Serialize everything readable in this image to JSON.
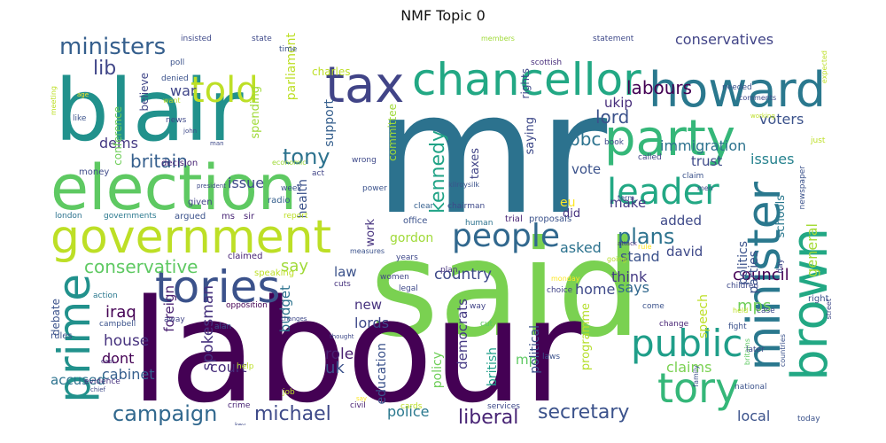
{
  "title": "NMF Topic 0",
  "words": [
    {
      "text": "mr",
      "size": 190,
      "color": "#2c728e"
    },
    {
      "text": "said",
      "size": 150,
      "color": "#7ad151"
    },
    {
      "text": "labour",
      "size": 160,
      "color": "#440154"
    },
    {
      "text": "blair",
      "size": 96,
      "color": "#21918c"
    },
    {
      "text": "election",
      "size": 70,
      "color": "#5ec962"
    },
    {
      "text": "government",
      "size": 52,
      "color": "#bddf26"
    },
    {
      "text": "tax",
      "size": 56,
      "color": "#414487"
    },
    {
      "text": "chancellor",
      "size": 50,
      "color": "#22a884"
    },
    {
      "text": "howard",
      "size": 54,
      "color": "#2a788e"
    },
    {
      "text": "party",
      "size": 56,
      "color": "#35b779"
    },
    {
      "text": "told",
      "size": 40,
      "color": "#bddf26"
    },
    {
      "text": "minister",
      "size": 52,
      "color": "#2a788e",
      "r": 90
    },
    {
      "text": "brown",
      "size": 56,
      "color": "#22a884",
      "r": 90
    },
    {
      "text": "prime",
      "size": 50,
      "color": "#21918c",
      "r": 90
    },
    {
      "text": "tories",
      "size": 50,
      "color": "#3b528b"
    },
    {
      "text": "tory",
      "size": 46,
      "color": "#35b779"
    },
    {
      "text": "public",
      "size": 42,
      "color": "#1f9e89"
    },
    {
      "text": "leader",
      "size": 40,
      "color": "#22a884"
    },
    {
      "text": "people",
      "size": 36,
      "color": "#31688e"
    },
    {
      "text": "ministers",
      "size": 26,
      "color": "#355f8d"
    },
    {
      "text": "lib",
      "size": 22,
      "color": "#404688"
    },
    {
      "text": "campaign",
      "size": 24,
      "color": "#31688e"
    },
    {
      "text": "michael",
      "size": 22,
      "color": "#3e4a89"
    },
    {
      "text": "secretary",
      "size": 22,
      "color": "#3b528b"
    },
    {
      "text": "liberal",
      "size": 22,
      "color": "#482475"
    },
    {
      "text": "conservative",
      "size": 20,
      "color": "#5ec962"
    },
    {
      "text": "britain",
      "size": 20,
      "color": "#355f8d"
    },
    {
      "text": "tony",
      "size": 24,
      "color": "#2c728e"
    },
    {
      "text": "kennedy",
      "size": 22,
      "color": "#20a386",
      "r": 90
    },
    {
      "text": "plans",
      "size": 24,
      "color": "#2c728e"
    },
    {
      "text": "labours",
      "size": 20,
      "color": "#440154"
    },
    {
      "text": "lord",
      "size": 20,
      "color": "#3b528b"
    },
    {
      "text": "bbc",
      "size": 20,
      "color": "#2c728e"
    },
    {
      "text": "immigration",
      "size": 16,
      "color": "#2c728e"
    },
    {
      "text": "conservatives",
      "size": 16,
      "color": "#414487"
    },
    {
      "text": "voters",
      "size": 16,
      "color": "#3b528b"
    },
    {
      "text": "ukip",
      "size": 15,
      "color": "#472d7b"
    },
    {
      "text": "trust",
      "size": 15,
      "color": "#3e4989"
    },
    {
      "text": "issues",
      "size": 16,
      "color": "#26828e"
    },
    {
      "text": "general",
      "size": 16,
      "color": "#a5db36",
      "r": 90
    },
    {
      "text": "council",
      "size": 18,
      "color": "#440154"
    },
    {
      "text": "iraq",
      "size": 18,
      "color": "#440154"
    },
    {
      "text": "war",
      "size": 16,
      "color": "#404688"
    },
    {
      "text": "dems",
      "size": 16,
      "color": "#443983"
    },
    {
      "text": "issue",
      "size": 16,
      "color": "#3e4a89"
    },
    {
      "text": "say",
      "size": 18,
      "color": "#a0da39"
    },
    {
      "text": "country",
      "size": 17,
      "color": "#3e4989"
    },
    {
      "text": "asked",
      "size": 16,
      "color": "#2c728e"
    },
    {
      "text": "home",
      "size": 16,
      "color": "#3e4989"
    },
    {
      "text": "think",
      "size": 16,
      "color": "#443983"
    },
    {
      "text": "says",
      "size": 16,
      "color": "#31688e"
    },
    {
      "text": "stand",
      "size": 16,
      "color": "#3b528b"
    },
    {
      "text": "david",
      "size": 15,
      "color": "#3e4989"
    },
    {
      "text": "make",
      "size": 15,
      "color": "#443983"
    },
    {
      "text": "vote",
      "size": 15,
      "color": "#3b528b"
    },
    {
      "text": "added",
      "size": 15,
      "color": "#3e4989"
    },
    {
      "text": "house",
      "size": 17,
      "color": "#46327e"
    },
    {
      "text": "dont",
      "size": 16,
      "color": "#440154"
    },
    {
      "text": "cabinet",
      "size": 16,
      "color": "#355f8d"
    },
    {
      "text": "accused",
      "size": 15,
      "color": "#2c728e"
    },
    {
      "text": "court",
      "size": 16,
      "color": "#472d7b"
    },
    {
      "text": "uk",
      "size": 18,
      "color": "#3b528b"
    },
    {
      "text": "role",
      "size": 17,
      "color": "#481f70"
    },
    {
      "text": "police",
      "size": 16,
      "color": "#2a788e"
    },
    {
      "text": "new",
      "size": 15,
      "color": "#46327e"
    },
    {
      "text": "lords",
      "size": 16,
      "color": "#3e4989"
    },
    {
      "text": "law",
      "size": 15,
      "color": "#3b528b"
    },
    {
      "text": "mps",
      "size": 18,
      "color": "#6ece58"
    },
    {
      "text": "local",
      "size": 16,
      "color": "#3b528b"
    },
    {
      "text": "claims",
      "size": 16,
      "color": "#7ad151"
    },
    {
      "text": "mp",
      "size": 15,
      "color": "#5ec962"
    },
    {
      "text": "eu",
      "size": 14,
      "color": "#fde725"
    },
    {
      "text": "spokesman",
      "size": 17,
      "color": "#46327e",
      "r": 90
    },
    {
      "text": "foreign",
      "size": 15,
      "color": "#481f70",
      "r": 90
    },
    {
      "text": "budget",
      "size": 15,
      "color": "#2c728e",
      "r": 90
    },
    {
      "text": "education",
      "size": 14,
      "color": "#3b528b",
      "r": 90
    },
    {
      "text": "democrats",
      "size": 15,
      "color": "#443983",
      "r": 90
    },
    {
      "text": "british",
      "size": 14,
      "color": "#1f9e89",
      "r": 90
    },
    {
      "text": "policy",
      "size": 14,
      "color": "#6ece58",
      "r": 90
    },
    {
      "text": "political",
      "size": 14,
      "color": "#3b528b",
      "r": 90
    },
    {
      "text": "programme",
      "size": 13,
      "color": "#b5de2b",
      "r": 90
    },
    {
      "text": "politics",
      "size": 14,
      "color": "#3b528b",
      "r": 90
    },
    {
      "text": "parties",
      "size": 14,
      "color": "#3b528b",
      "r": 90
    },
    {
      "text": "schools",
      "size": 13,
      "color": "#2a788e",
      "r": 90
    },
    {
      "text": "speech",
      "size": 14,
      "color": "#bddf26",
      "r": 90
    },
    {
      "text": "parliament",
      "size": 14,
      "color": "#bddf26",
      "r": 90
    },
    {
      "text": "spending",
      "size": 13,
      "color": "#a0da39",
      "r": 90
    },
    {
      "text": "support",
      "size": 14,
      "color": "#355f8d",
      "r": 90
    },
    {
      "text": "health",
      "size": 14,
      "color": "#3b528b",
      "r": 90
    },
    {
      "text": "committee",
      "size": 12,
      "color": "#a0da39",
      "r": 90
    },
    {
      "text": "taxes",
      "size": 13,
      "color": "#414487",
      "r": 90
    },
    {
      "text": "saying",
      "size": 13,
      "color": "#3e4989",
      "r": 90
    },
    {
      "text": "rights",
      "size": 12,
      "color": "#3e4989",
      "r": 90
    },
    {
      "text": "commons",
      "size": 13,
      "color": "#2c728e",
      "r": 90
    },
    {
      "text": "gordon",
      "size": 14,
      "color": "#a0da39"
    },
    {
      "text": "work",
      "size": 13,
      "color": "#46327e",
      "r": 90
    },
    {
      "text": "did",
      "size": 13,
      "color": "#46327e"
    },
    {
      "text": "conference",
      "size": 12,
      "color": "#6ece58",
      "r": 90
    },
    {
      "text": "believe",
      "size": 12,
      "color": "#404688",
      "r": 90
    },
    {
      "text": "charles",
      "size": 12,
      "color": "#bddf26"
    },
    {
      "text": "debate",
      "size": 12,
      "color": "#3b528b",
      "r": 90
    },
    {
      "text": "economic",
      "size": 8,
      "color": "#a0da39"
    },
    {
      "text": "decision",
      "size": 10,
      "color": "#482475"
    },
    {
      "text": "money",
      "size": 10,
      "color": "#3e4989"
    },
    {
      "text": "london",
      "size": 9,
      "color": "#2c728e"
    },
    {
      "text": "governments",
      "size": 9,
      "color": "#2a788e"
    },
    {
      "text": "argued",
      "size": 10,
      "color": "#3b528b"
    },
    {
      "text": "ms",
      "size": 10,
      "color": "#482475"
    },
    {
      "text": "sir",
      "size": 10,
      "color": "#482475"
    },
    {
      "text": "report",
      "size": 9,
      "color": "#bddf26"
    },
    {
      "text": "office",
      "size": 10,
      "color": "#3b528b"
    },
    {
      "text": "human",
      "size": 9,
      "color": "#2c728e"
    },
    {
      "text": "trial",
      "size": 10,
      "color": "#482475"
    },
    {
      "text": "proposals",
      "size": 10,
      "color": "#3b528b"
    },
    {
      "text": "given",
      "size": 10,
      "color": "#414487"
    },
    {
      "text": "radio",
      "size": 10,
      "color": "#355f8d"
    },
    {
      "text": "claimed",
      "size": 10,
      "color": "#482475"
    },
    {
      "text": "speaking",
      "size": 10,
      "color": "#bddf26"
    },
    {
      "text": "opposition",
      "size": 9,
      "color": "#440154"
    },
    {
      "text": "alan",
      "size": 9,
      "color": "#3b528b"
    },
    {
      "text": "away",
      "size": 9,
      "color": "#414487"
    },
    {
      "text": "action",
      "size": 9,
      "color": "#2a788e"
    },
    {
      "text": "campbell",
      "size": 9,
      "color": "#3b528b"
    },
    {
      "text": "rules",
      "size": 10,
      "color": "#3b528b"
    },
    {
      "text": "evidence",
      "size": 9,
      "color": "#46327e"
    },
    {
      "text": "chief",
      "size": 7,
      "color": "#3e4989"
    },
    {
      "text": "east",
      "size": 7,
      "color": "#472d7b"
    },
    {
      "text": "crime",
      "size": 9,
      "color": "#482475"
    },
    {
      "text": "help",
      "size": 9,
      "color": "#bddf26"
    },
    {
      "text": "job",
      "size": 9,
      "color": "#bddf26"
    },
    {
      "text": "civil",
      "size": 9,
      "color": "#481f70"
    },
    {
      "text": "cards",
      "size": 9,
      "color": "#bddf26"
    },
    {
      "text": "services",
      "size": 9,
      "color": "#3e4989"
    },
    {
      "text": "cut",
      "size": 9,
      "color": "#5ec962"
    },
    {
      "text": "laws",
      "size": 9,
      "color": "#3b528b"
    },
    {
      "text": "way",
      "size": 9,
      "color": "#414487"
    },
    {
      "text": "come",
      "size": 9,
      "color": "#3b528b"
    },
    {
      "text": "change",
      "size": 9,
      "color": "#482475"
    },
    {
      "text": "choice",
      "size": 9,
      "color": "#414487"
    },
    {
      "text": "monday",
      "size": 8,
      "color": "#fde725"
    },
    {
      "text": "women",
      "size": 9,
      "color": "#414487"
    },
    {
      "text": "legal",
      "size": 9,
      "color": "#3e4989"
    },
    {
      "text": "plan",
      "size": 9,
      "color": "#46327e"
    },
    {
      "text": "cuts",
      "size": 9,
      "color": "#46327e"
    },
    {
      "text": "years",
      "size": 9,
      "color": "#3e4989"
    },
    {
      "text": "measures",
      "size": 8,
      "color": "#3b528b"
    },
    {
      "text": "going",
      "size": 8,
      "color": "#b5de2b"
    },
    {
      "text": "attack",
      "size": 7,
      "color": "#472d7b"
    },
    {
      "text": "rule",
      "size": 8,
      "color": "#fde725"
    },
    {
      "text": "term",
      "size": 8,
      "color": "#3e4989"
    },
    {
      "text": "clear",
      "size": 9,
      "color": "#355f8d"
    },
    {
      "text": "chairman",
      "size": 9,
      "color": "#3e4989"
    },
    {
      "text": "kilroysilk",
      "size": 8,
      "color": "#3b528b"
    },
    {
      "text": "power",
      "size": 9,
      "color": "#3b528b"
    },
    {
      "text": "week",
      "size": 9,
      "color": "#3b528b"
    },
    {
      "text": "act",
      "size": 9,
      "color": "#414487"
    },
    {
      "text": "wrong",
      "size": 9,
      "color": "#3e4989"
    },
    {
      "text": "news",
      "size": 9,
      "color": "#3e4989"
    },
    {
      "text": "like",
      "size": 9,
      "color": "#3b528b"
    },
    {
      "text": "want",
      "size": 8,
      "color": "#bddf26"
    },
    {
      "text": "denied",
      "size": 9,
      "color": "#3b528b"
    },
    {
      "text": "poll",
      "size": 9,
      "color": "#3b528b"
    },
    {
      "text": "insisted",
      "size": 9,
      "color": "#3e4989"
    },
    {
      "text": "state",
      "size": 9,
      "color": "#3e4989"
    },
    {
      "text": "time",
      "size": 9,
      "color": "#3b528b"
    },
    {
      "text": "members",
      "size": 8,
      "color": "#a0da39"
    },
    {
      "text": "statement",
      "size": 9,
      "color": "#3e4989"
    },
    {
      "text": "scottish",
      "size": 9,
      "color": "#472d7b"
    },
    {
      "text": "needed",
      "size": 9,
      "color": "#3b528b"
    },
    {
      "text": "comments",
      "size": 8,
      "color": "#3e4989"
    },
    {
      "text": "expected",
      "size": 8,
      "color": "#bddf26",
      "r": 90
    },
    {
      "text": "just",
      "size": 9,
      "color": "#bddf26"
    },
    {
      "text": "book",
      "size": 9,
      "color": "#3e4989"
    },
    {
      "text": "called",
      "size": 9,
      "color": "#414487"
    },
    {
      "text": "claim",
      "size": 9,
      "color": "#3b528b"
    },
    {
      "text": "men",
      "size": 8,
      "color": "#3e4989"
    },
    {
      "text": "newspaper",
      "size": 9,
      "color": "#3b528b",
      "r": 90
    },
    {
      "text": "britains",
      "size": 8,
      "color": "#5ec962",
      "r": 90
    },
    {
      "text": "day",
      "size": 9,
      "color": "#3e4989",
      "r": 90
    },
    {
      "text": "children",
      "size": 9,
      "color": "#3e4989"
    },
    {
      "text": "right",
      "size": 10,
      "color": "#3b528b"
    },
    {
      "text": "held",
      "size": 8,
      "color": "#bddf26"
    },
    {
      "text": "case",
      "size": 9,
      "color": "#3e4989"
    },
    {
      "text": "fight",
      "size": 9,
      "color": "#3b528b"
    },
    {
      "text": "street",
      "size": 8,
      "color": "#3e4989",
      "r": 90
    },
    {
      "text": "later",
      "size": 9,
      "color": "#3e4989"
    },
    {
      "text": "countries",
      "size": 8,
      "color": "#3b528b",
      "r": 90
    },
    {
      "text": "national",
      "size": 9,
      "color": "#3b528b"
    },
    {
      "text": "family",
      "size": 8,
      "color": "#3b528b",
      "r": 90
    },
    {
      "text": "today",
      "size": 9,
      "color": "#3b528b"
    },
    {
      "text": "working",
      "size": 7,
      "color": "#bddf26"
    },
    {
      "text": "meeting",
      "size": 8,
      "color": "#bddf26",
      "r": 90
    },
    {
      "text": "age",
      "size": 7,
      "color": "#fde725"
    },
    {
      "text": "john",
      "size": 7,
      "color": "#3e4989"
    },
    {
      "text": "man",
      "size": 7,
      "color": "#3e4989"
    },
    {
      "text": "president",
      "size": 7,
      "color": "#3e4989"
    },
    {
      "text": "key",
      "size": 7,
      "color": "#3e4989"
    },
    {
      "text": "changes",
      "size": 7,
      "color": "#3e4989"
    },
    {
      "text": "thought",
      "size": 7,
      "color": "#3e4989"
    },
    {
      "text": "say",
      "size": 7,
      "color": "#fde725"
    }
  ]
}
